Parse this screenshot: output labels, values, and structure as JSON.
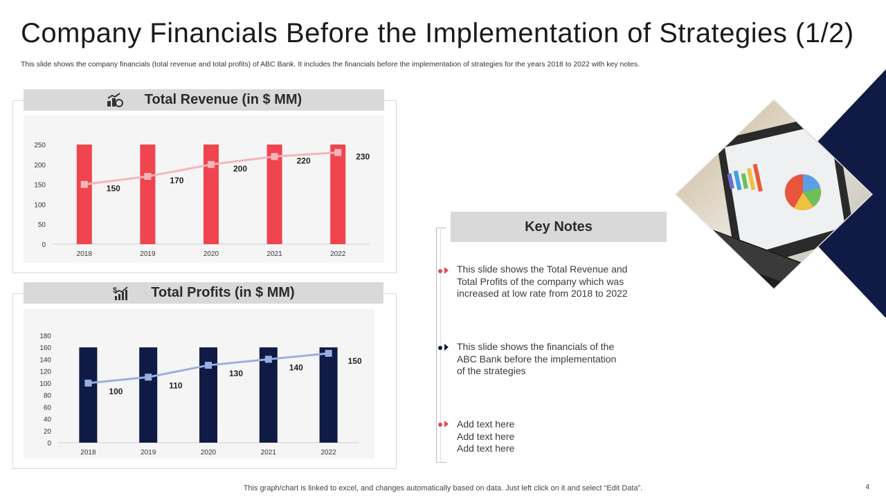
{
  "title": "Company Financials Before the Implementation of Strategies (1/2)",
  "subtitle": "This slide shows the company financials (total revenue and total profits) of ABC Bank. It includes the financials before the implementation of strategies for the years 2018 to 2022 with key notes.",
  "colors": {
    "red": "#f0444f",
    "navy": "#0f1b44",
    "pink_line": "#f4b5b8",
    "blue_line": "#9aaee0",
    "grey": "#d9d9d9"
  },
  "key_notes": {
    "header": "Key Notes",
    "notes": [
      {
        "lines": [
          "This slide shows the Total Revenue and",
          "Total Profits of the company which was",
          "increased at low rate from 2018 to 2022"
        ],
        "bullet_color": "#e04a55"
      },
      {
        "lines": [
          "This slide shows the financials of the",
          "ABC Bank before the implementation",
          "of the strategies"
        ],
        "bullet_color": "#0f1b44"
      },
      {
        "lines": [
          "Add text here",
          "Add text here",
          "Add text here"
        ],
        "bullet_color": "#e04a55"
      }
    ]
  },
  "footer": "This graph/chart is linked to excel,  and changes automatically based on data. Just left click on it and select “Edit Data”.",
  "page_number": "4",
  "chart_data": [
    {
      "type": "bar",
      "title": "Total Revenue (in $ MM)",
      "categories": [
        "2018",
        "2019",
        "2020",
        "2021",
        "2022"
      ],
      "series": [
        {
          "name": "Bars",
          "kind": "bar",
          "values": [
            250,
            250,
            250,
            250,
            250
          ],
          "color": "#f0444f"
        },
        {
          "name": "Total Revenue",
          "kind": "line",
          "values": [
            150,
            170,
            200,
            220,
            230
          ],
          "color": "#f4b5b8",
          "labels": [
            "150",
            "170",
            "200",
            "220",
            "230"
          ]
        }
      ],
      "ylim": [
        0,
        250
      ],
      "yticks": [
        0,
        50,
        100,
        150,
        200,
        250
      ],
      "ytick_labels": [
        "0",
        "50",
        "100",
        "150",
        "200",
        "250"
      ],
      "grid": false
    },
    {
      "type": "bar",
      "title": "Total Profits (in $ MM)",
      "categories": [
        "2018",
        "2019",
        "2020",
        "2021",
        "2022"
      ],
      "series": [
        {
          "name": "Bars",
          "kind": "bar",
          "values": [
            160,
            160,
            160,
            160,
            160
          ],
          "color": "#0f1b44"
        },
        {
          "name": "Total Profits",
          "kind": "line",
          "values": [
            100,
            110,
            130,
            140,
            150
          ],
          "color": "#9aaee0",
          "labels": [
            "100",
            "110",
            "130",
            "140",
            "150"
          ]
        }
      ],
      "ylim": [
        0,
        180
      ],
      "yticks": [
        0,
        20,
        40,
        60,
        80,
        100,
        120,
        140,
        160,
        180
      ],
      "ytick_labels": [
        "0",
        "20",
        "40",
        "60",
        "80",
        "100",
        "120",
        "140",
        "160",
        "180"
      ],
      "grid": false
    }
  ]
}
